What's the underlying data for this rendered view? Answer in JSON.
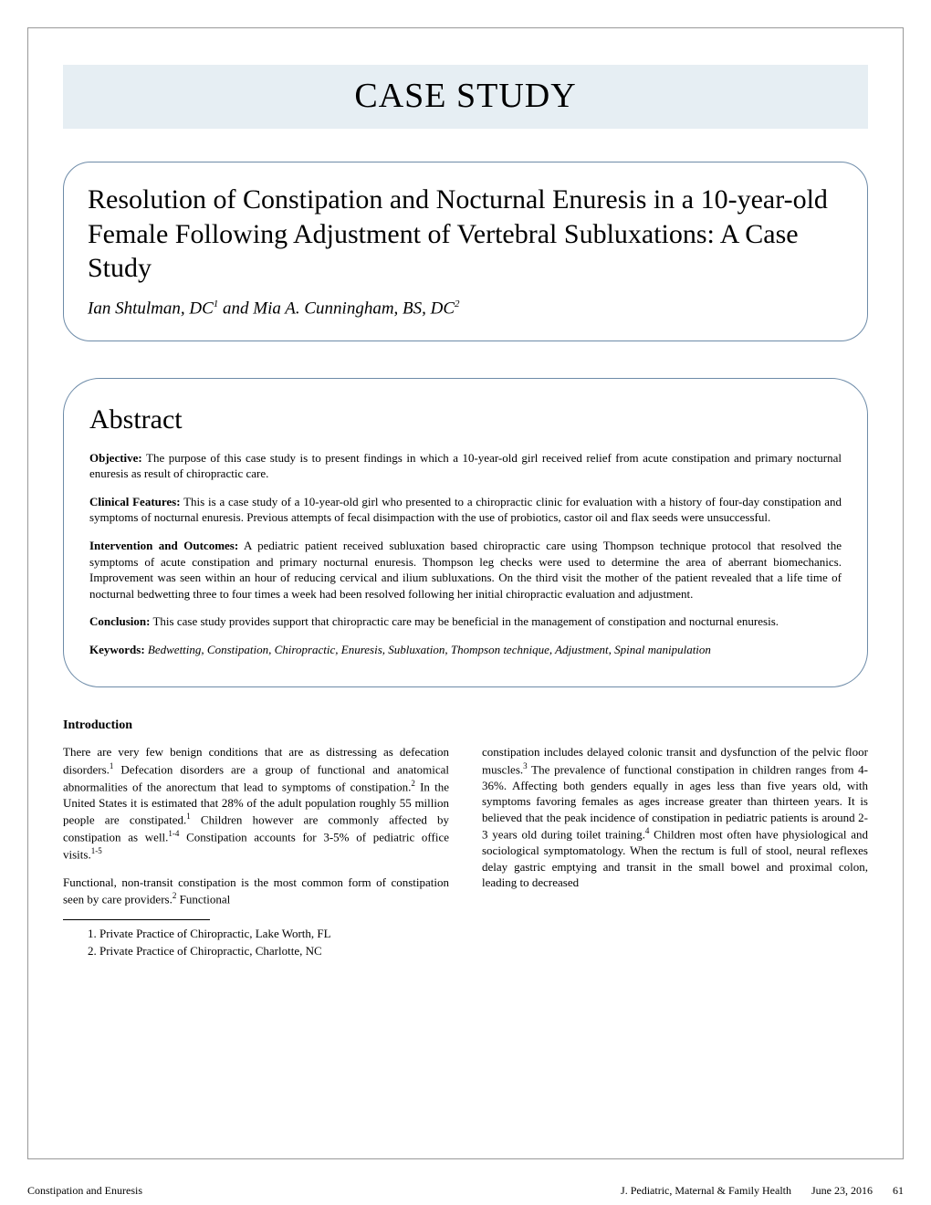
{
  "colors": {
    "header_bg": "#e6eef3",
    "box_border": "#6d8ba8",
    "page_border": "#999999",
    "text": "#000000",
    "background": "#ffffff"
  },
  "typography": {
    "body_font": "Times New Roman",
    "header_size_pt": 38,
    "title_size_pt": 30,
    "abstract_heading_size_pt": 30,
    "body_size_pt": 13,
    "author_size_pt": 19
  },
  "header": {
    "label": "CASE STUDY"
  },
  "title_block": {
    "title": "Resolution of Constipation and Nocturnal Enuresis in a 10-year-old Female Following Adjustment of Vertebral Subluxations: A Case Study",
    "authors_html": "Ian Shtulman, DC<sup>1</sup> and Mia A. Cunningham, BS, DC<sup>2</sup>"
  },
  "abstract": {
    "heading": "Abstract",
    "sections": [
      {
        "label": "Objective:",
        "text": " The purpose of this case study is to present findings in which a 10-year-old girl received relief from acute constipation and primary nocturnal enuresis as result of chiropractic care."
      },
      {
        "label": "Clinical Features:",
        "text": " This is a case study of a 10-year-old girl who presented to a chiropractic clinic for evaluation with a history of four-day constipation and symptoms of nocturnal enuresis. Previous attempts of fecal disimpaction with the use of probiotics, castor oil and flax seeds were unsuccessful."
      },
      {
        "label": "Intervention and Outcomes:",
        "text": " A pediatric patient received subluxation based chiropractic care using Thompson technique protocol that resolved the symptoms of acute constipation and primary nocturnal enuresis. Thompson leg checks were used to determine the area of aberrant biomechanics. Improvement was seen within an hour of reducing cervical and ilium subluxations. On the third visit the mother of the patient revealed that a life time of nocturnal bedwetting three to four times a week had been resolved following her initial chiropractic evaluation and adjustment."
      },
      {
        "label": "Conclusion:",
        "text": " This case study provides support that chiropractic care may be beneficial in the management of constipation and nocturnal enuresis."
      }
    ],
    "keywords_label": "Keywords:",
    "keywords_text": " Bedwetting, Constipation, Chiropractic, Enuresis, Subluxation, Thompson technique, Adjustment, Spinal manipulation"
  },
  "body": {
    "intro_heading": "Introduction",
    "col1_p1_html": "There are very few benign conditions that are as distressing as defecation disorders.<sup>1</sup> Defecation disorders are a group of functional and anatomical abnormalities of the anorectum that lead to symptoms of constipation.<sup>2</sup>  In the United States it is estimated that 28% of the adult population roughly 55 million people are constipated.<sup>1</sup> Children however are commonly affected by constipation as well.<sup>1-4</sup>  Constipation accounts for 3-5% of pediatric office visits.<sup>1-5</sup>",
    "col1_p2_html": "Functional, non-transit constipation is the most common form of constipation seen by care providers.<sup>2</sup>   Functional",
    "col2_p1_html": "constipation includes delayed colonic transit and dysfunction of the pelvic floor muscles.<sup>3</sup> The prevalence of functional constipation in children ranges from 4-36%.  Affecting both genders equally in ages less than five years old, with symptoms favoring females as ages increase greater than thirteen years. It is believed that the peak incidence of constipation in pediatric patients is around 2-3 years old during toilet training.<sup>4</sup> Children most often have physiological and sociological symptomatology. When the rectum is full of stool, neural reflexes delay gastric emptying and transit in the small bowel and proximal colon, leading to decreased"
  },
  "affiliations": [
    "Private Practice of Chiropractic, Lake Worth, FL",
    "Private Practice of Chiropractic, Charlotte, NC"
  ],
  "footer": {
    "left": "Constipation and Enuresis",
    "center": "J. Pediatric, Maternal & Family Health",
    "date": "June 23, 2016",
    "page": "61"
  }
}
